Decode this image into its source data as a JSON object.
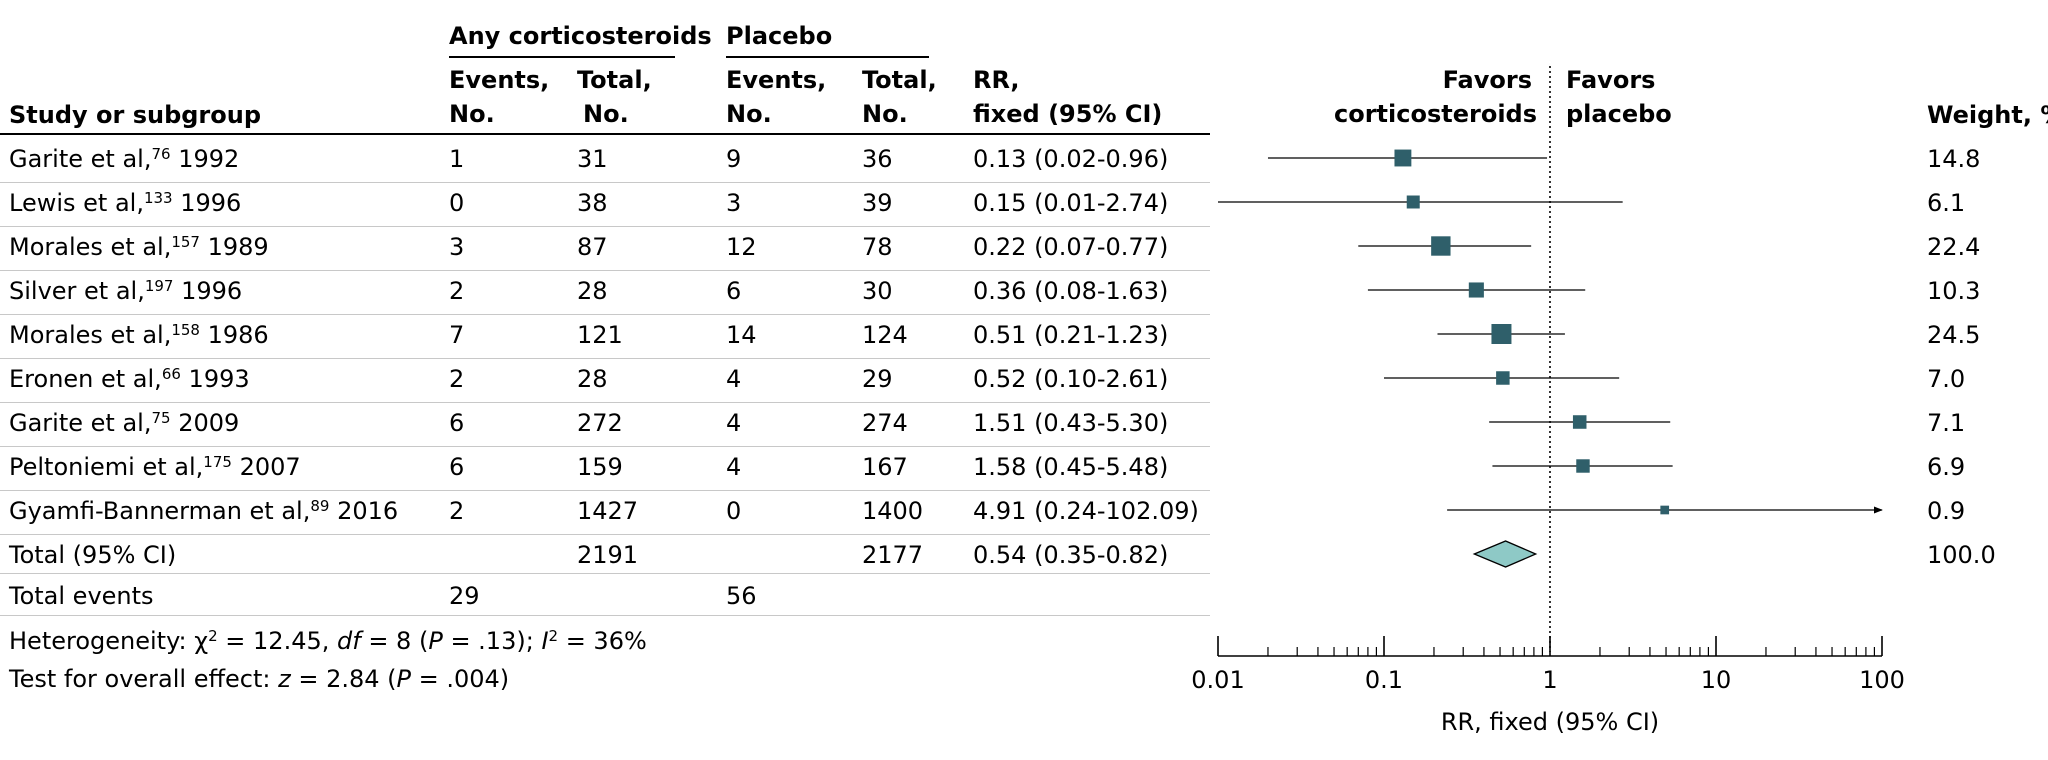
{
  "headers": {
    "study": "Study or subgroup",
    "group1": "Any corticosteroids",
    "group2": "Placebo",
    "events_l1": "Events,",
    "events_l2": "No.",
    "total_l1": "Total,",
    "total_l2": "No.",
    "rr_l1": "RR,",
    "rr_l2": "fixed (95% CI)",
    "favors_left_l1": "Favors",
    "favors_left_l2": "corticosteroids",
    "favors_right_l1": "Favors",
    "favors_right_l2": "placebo",
    "weight": "Weight, %"
  },
  "studies": [
    {
      "author": "Garite et al,",
      "ref": "76",
      "year": "1992",
      "cort_events": "1",
      "cort_total": "31",
      "plac_events": "9",
      "plac_total": "36",
      "rr_text": "0.13 (0.02-0.96)",
      "weight": "14.8"
    },
    {
      "author": "Lewis et al,",
      "ref": "133",
      "year": "1996",
      "cort_events": "0",
      "cort_total": "38",
      "plac_events": "3",
      "plac_total": "39",
      "rr_text": "0.15 (0.01-2.74)",
      "weight": "6.1"
    },
    {
      "author": "Morales et al,",
      "ref": "157",
      "year": "1989",
      "cort_events": "3",
      "cort_total": "87",
      "plac_events": "12",
      "plac_total": "78",
      "rr_text": "0.22 (0.07-0.77)",
      "weight": "22.4"
    },
    {
      "author": "Silver et al,",
      "ref": "197",
      "year": "1996",
      "cort_events": "2",
      "cort_total": "28",
      "plac_events": "6",
      "plac_total": "30",
      "rr_text": "0.36 (0.08-1.63)",
      "weight": "10.3"
    },
    {
      "author": "Morales et al,",
      "ref": "158",
      "year": "1986",
      "cort_events": "7",
      "cort_total": "121",
      "plac_events": "14",
      "plac_total": "124",
      "rr_text": "0.51 (0.21-1.23)",
      "weight": "24.5"
    },
    {
      "author": "Eronen et al,",
      "ref": "66",
      "year": "1993",
      "cort_events": "2",
      "cort_total": "28",
      "plac_events": "4",
      "plac_total": "29",
      "rr_text": "0.52 (0.10-2.61)",
      "weight": "7.0"
    },
    {
      "author": "Garite et al,",
      "ref": "75",
      "year": "2009",
      "cort_events": "6",
      "cort_total": "272",
      "plac_events": "4",
      "plac_total": "274",
      "rr_text": "1.51 (0.43-5.30)",
      "weight": "7.1"
    },
    {
      "author": "Peltoniemi et al,",
      "ref": "175",
      "year": "2007",
      "cort_events": "6",
      "cort_total": "159",
      "plac_events": "4",
      "plac_total": "167",
      "rr_text": "1.58 (0.45-5.48)",
      "weight": "6.9"
    },
    {
      "author": "Gyamfi-Bannerman et al,",
      "ref": "89",
      "year": "2016",
      "cort_events": "2",
      "cort_total": "1427",
      "plac_events": "0",
      "plac_total": "1400",
      "rr_text": "4.91 (0.24-102.09)",
      "weight": "0.9"
    }
  ],
  "total": {
    "label": "Total (95% CI)",
    "cort_total": "2191",
    "plac_total": "2177",
    "rr_text": "0.54 (0.35-0.82)",
    "weight": "100.0"
  },
  "total_events": {
    "label": "Total events",
    "cort_events": "29",
    "plac_events": "56"
  },
  "heterogeneity": {
    "prefix": "Heterogeneity: χ",
    "sq": "2",
    "mid1": " = 12.45, ",
    "df": "df",
    "mid2": " = 8 (",
    "p": "P",
    "mid3": " = .13); ",
    "i": "I",
    "sq2": "2",
    "end": " = 36%"
  },
  "overall": {
    "prefix": "Test for overall effect: ",
    "z": "z",
    "mid": " = 2.84 (",
    "p": "P",
    "end": " = .004)"
  },
  "colors": {
    "marker": "#2f5f6a",
    "diamond": "#8ec9c6",
    "line": "#000000",
    "separator": "#c8c8c8"
  },
  "chart_data": {
    "type": "forest",
    "xscale": "log",
    "xlim": [
      0.01,
      100
    ],
    "xticks": [
      0.01,
      0.1,
      1,
      10,
      100
    ],
    "xtick_labels": [
      "0.01",
      "0.1",
      "1",
      "10",
      "100"
    ],
    "xlabel": "RR, fixed (95% CI)",
    "reference": 1,
    "points": [
      {
        "rr": 0.13,
        "lo": 0.02,
        "hi": 0.96,
        "weight": 14.8
      },
      {
        "rr": 0.15,
        "lo": 0.01,
        "hi": 2.74,
        "weight": 6.1
      },
      {
        "rr": 0.22,
        "lo": 0.07,
        "hi": 0.77,
        "weight": 22.4
      },
      {
        "rr": 0.36,
        "lo": 0.08,
        "hi": 1.63,
        "weight": 10.3
      },
      {
        "rr": 0.51,
        "lo": 0.21,
        "hi": 1.23,
        "weight": 24.5
      },
      {
        "rr": 0.52,
        "lo": 0.1,
        "hi": 2.61,
        "weight": 7.0
      },
      {
        "rr": 1.51,
        "lo": 0.43,
        "hi": 5.3,
        "weight": 7.1
      },
      {
        "rr": 1.58,
        "lo": 0.45,
        "hi": 5.48,
        "weight": 6.9
      },
      {
        "rr": 4.91,
        "lo": 0.24,
        "hi": 102.09,
        "weight": 0.9
      }
    ],
    "pooled": {
      "rr": 0.54,
      "lo": 0.35,
      "hi": 0.82
    }
  }
}
